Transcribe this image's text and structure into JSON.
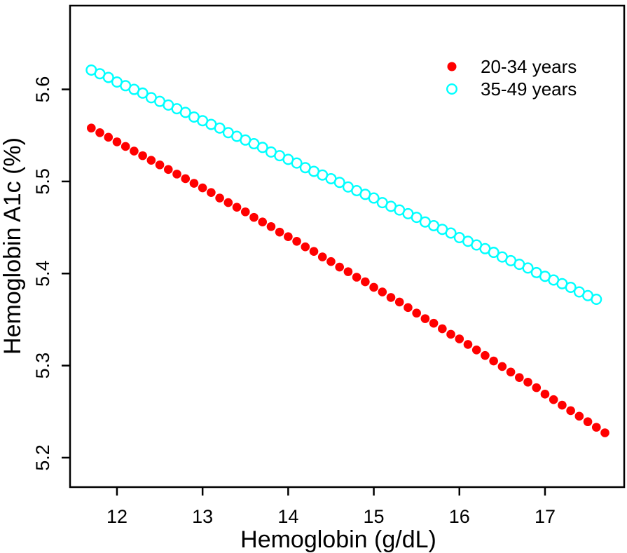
{
  "figure": {
    "background": "#ffffff",
    "frame_color": "#000000"
  },
  "chart_data": {
    "type": "scatter",
    "title": "",
    "xlabel": "Hemoglobin (g/dL)",
    "ylabel": "Hemoglobin A1c (%)",
    "xlim": [
      11.452,
      17.925
    ],
    "ylim": [
      5.168,
      5.691
    ],
    "x_ticks": [
      12,
      13,
      14,
      15,
      16,
      17
    ],
    "y_ticks": [
      5.2,
      5.3,
      5.4,
      5.5,
      5.6
    ],
    "grid": false,
    "legend": {
      "position": "top-right",
      "entries": [
        {
          "label": "20-34 years",
          "marker": "filled-circle",
          "color": "#ff0000"
        },
        {
          "label": "35-49 years",
          "marker": "open-circle",
          "color": "#00ffff"
        }
      ]
    },
    "series": [
      {
        "name": "20-34 years",
        "marker": "filled-circle",
        "color": "#ff0000",
        "x": [
          11.7,
          11.8,
          11.9,
          12.0,
          12.1,
          12.2,
          12.3,
          12.4,
          12.5,
          12.6,
          12.7,
          12.8,
          12.9,
          13.0,
          13.1,
          13.2,
          13.3,
          13.4,
          13.5,
          13.6,
          13.7,
          13.8,
          13.9,
          14.0,
          14.1,
          14.2,
          14.3,
          14.4,
          14.5,
          14.6,
          14.7,
          14.8,
          14.9,
          15.0,
          15.1,
          15.2,
          15.3,
          15.4,
          15.5,
          15.6,
          15.7,
          15.8,
          15.9,
          16.0,
          16.1,
          16.2,
          16.3,
          16.4,
          16.5,
          16.6,
          16.7,
          16.8,
          16.9,
          17.0,
          17.1,
          17.2,
          17.3,
          17.4,
          17.5,
          17.6,
          17.7
        ],
        "y": [
          5.558,
          5.553,
          5.548,
          5.543,
          5.538,
          5.533,
          5.528,
          5.523,
          5.518,
          5.513,
          5.508,
          5.503,
          5.498,
          5.493,
          5.488,
          5.482,
          5.477,
          5.472,
          5.467,
          5.461,
          5.456,
          5.451,
          5.445,
          5.44,
          5.435,
          5.429,
          5.424,
          5.418,
          5.413,
          5.407,
          5.402,
          5.396,
          5.391,
          5.385,
          5.38,
          5.374,
          5.369,
          5.363,
          5.357,
          5.351,
          5.346,
          5.34,
          5.334,
          5.329,
          5.323,
          5.317,
          5.311,
          5.305,
          5.299,
          5.293,
          5.287,
          5.282,
          5.276,
          5.269,
          5.263,
          5.257,
          5.251,
          5.245,
          5.239,
          5.233,
          5.227
        ]
      },
      {
        "name": "35-49 years",
        "marker": "open-circle",
        "color": "#00ffff",
        "x": [
          11.7,
          11.8,
          11.9,
          12.0,
          12.1,
          12.2,
          12.3,
          12.4,
          12.5,
          12.6,
          12.7,
          12.8,
          12.9,
          13.0,
          13.1,
          13.2,
          13.3,
          13.4,
          13.5,
          13.6,
          13.7,
          13.8,
          13.9,
          14.0,
          14.1,
          14.2,
          14.3,
          14.4,
          14.5,
          14.6,
          14.7,
          14.8,
          14.9,
          15.0,
          15.1,
          15.2,
          15.3,
          15.4,
          15.5,
          15.6,
          15.7,
          15.8,
          15.9,
          16.0,
          16.1,
          16.2,
          16.3,
          16.4,
          16.5,
          16.6,
          16.7,
          16.8,
          16.9,
          17.0,
          17.1,
          17.2,
          17.3,
          17.4,
          17.5,
          17.6
        ],
        "y": [
          5.621,
          5.617,
          5.613,
          5.608,
          5.604,
          5.6,
          5.596,
          5.591,
          5.587,
          5.583,
          5.579,
          5.575,
          5.57,
          5.566,
          5.562,
          5.558,
          5.553,
          5.549,
          5.545,
          5.541,
          5.537,
          5.532,
          5.528,
          5.524,
          5.52,
          5.515,
          5.511,
          5.507,
          5.503,
          5.499,
          5.494,
          5.49,
          5.486,
          5.482,
          5.477,
          5.473,
          5.469,
          5.465,
          5.461,
          5.456,
          5.452,
          5.448,
          5.444,
          5.439,
          5.435,
          5.431,
          5.427,
          5.423,
          5.418,
          5.414,
          5.41,
          5.406,
          5.401,
          5.397,
          5.393,
          5.389,
          5.385,
          5.38,
          5.376,
          5.372
        ]
      }
    ]
  }
}
